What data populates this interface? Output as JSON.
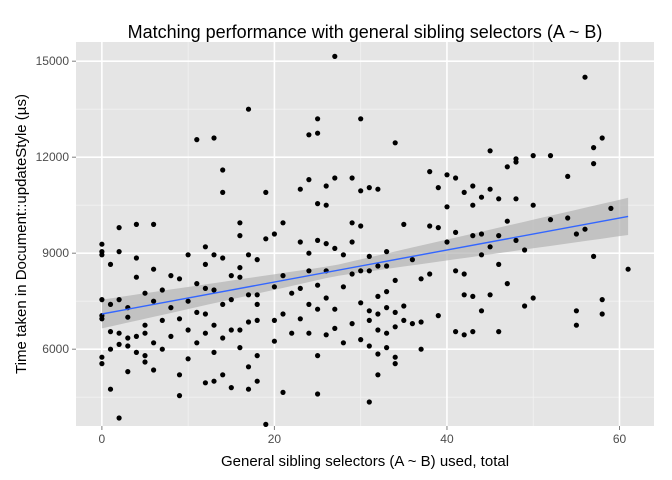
{
  "chart_data": {
    "type": "scatter",
    "title": "Matching performance with general sibling selectors (A ~ B)",
    "xlabel": "General sibling selectors (A ~ B) used, total",
    "ylabel": "Time taken in Document::updateStyle (µs)",
    "xlim": [
      -3,
      64
    ],
    "ylim": [
      3600,
      15600
    ],
    "x_ticks": [
      0,
      20,
      40,
      60
    ],
    "y_ticks": [
      6000,
      9000,
      12000,
      15000
    ],
    "grid": true,
    "panel_background": "#e5e5e5",
    "point_color": "#000000",
    "trend": {
      "method": "linear",
      "color": "#3366ff",
      "band_color": "#b3b3b3",
      "start": [
        0,
        7100
      ],
      "end": [
        61,
        10150
      ],
      "band_halfwidth_start": 450,
      "band_halfwidth_mid": 170,
      "band_halfwidth_end": 580,
      "x_mid": 27
    },
    "points": [
      [
        0,
        9280
      ],
      [
        0,
        9050
      ],
      [
        0,
        8950
      ],
      [
        0,
        7550
      ],
      [
        0,
        7050
      ],
      [
        0,
        6950
      ],
      [
        0,
        5750
      ],
      [
        0,
        5550
      ],
      [
        1,
        8650
      ],
      [
        1,
        7400
      ],
      [
        1,
        6550
      ],
      [
        1,
        6000
      ],
      [
        1,
        4750
      ],
      [
        2,
        9800
      ],
      [
        2,
        9050
      ],
      [
        2,
        7550
      ],
      [
        2,
        6500
      ],
      [
        2,
        6150
      ],
      [
        2,
        3850
      ],
      [
        3,
        7300
      ],
      [
        3,
        7000
      ],
      [
        3,
        6350
      ],
      [
        3,
        6100
      ],
      [
        3,
        5300
      ],
      [
        4,
        9900
      ],
      [
        4,
        8850
      ],
      [
        4,
        8250
      ],
      [
        4,
        6400
      ],
      [
        4,
        5900
      ],
      [
        5,
        7750
      ],
      [
        5,
        6750
      ],
      [
        5,
        6500
      ],
      [
        5,
        5800
      ],
      [
        5,
        5600
      ],
      [
        6,
        9900
      ],
      [
        6,
        8500
      ],
      [
        6,
        7500
      ],
      [
        6,
        6200
      ],
      [
        6,
        5350
      ],
      [
        7,
        7850
      ],
      [
        7,
        6900
      ],
      [
        7,
        6000
      ],
      [
        8,
        8300
      ],
      [
        8,
        7300
      ],
      [
        8,
        6400
      ],
      [
        9,
        8200
      ],
      [
        9,
        6950
      ],
      [
        9,
        5200
      ],
      [
        9,
        4550
      ],
      [
        10,
        8950
      ],
      [
        10,
        7500
      ],
      [
        10,
        6600
      ],
      [
        10,
        5700
      ],
      [
        11,
        12550
      ],
      [
        11,
        8050
      ],
      [
        11,
        7150
      ],
      [
        11,
        6200
      ],
      [
        12,
        9200
      ],
      [
        12,
        8650
      ],
      [
        12,
        7900
      ],
      [
        12,
        7100
      ],
      [
        12,
        6500
      ],
      [
        12,
        4950
      ],
      [
        13,
        12600
      ],
      [
        13,
        8950
      ],
      [
        13,
        7850
      ],
      [
        13,
        6750
      ],
      [
        13,
        5900
      ],
      [
        13,
        5000
      ],
      [
        14,
        11600
      ],
      [
        14,
        10900
      ],
      [
        14,
        8850
      ],
      [
        14,
        7400
      ],
      [
        14,
        6350
      ],
      [
        14,
        5200
      ],
      [
        15,
        8300
      ],
      [
        15,
        7550
      ],
      [
        15,
        6600
      ],
      [
        15,
        4800
      ],
      [
        16,
        9950
      ],
      [
        16,
        9550
      ],
      [
        16,
        8550
      ],
      [
        16,
        8250
      ],
      [
        16,
        6600
      ],
      [
        16,
        6050
      ],
      [
        17,
        13500
      ],
      [
        17,
        8950
      ],
      [
        17,
        7700
      ],
      [
        17,
        6850
      ],
      [
        17,
        5450
      ],
      [
        17,
        4750
      ],
      [
        18,
        8800
      ],
      [
        18,
        7700
      ],
      [
        18,
        7400
      ],
      [
        18,
        6900
      ],
      [
        18,
        5800
      ],
      [
        18,
        5000
      ],
      [
        19,
        10900
      ],
      [
        19,
        9450
      ],
      [
        19,
        3650
      ],
      [
        20,
        9600
      ],
      [
        20,
        7950
      ],
      [
        20,
        6900
      ],
      [
        20,
        6250
      ],
      [
        21,
        9950
      ],
      [
        21,
        8300
      ],
      [
        21,
        7100
      ],
      [
        21,
        4650
      ],
      [
        22,
        7750
      ],
      [
        22,
        6500
      ],
      [
        23,
        11000
      ],
      [
        23,
        9350
      ],
      [
        23,
        7900
      ],
      [
        23,
        6950
      ],
      [
        24,
        12700
      ],
      [
        24,
        11300
      ],
      [
        24,
        9000
      ],
      [
        24,
        8450
      ],
      [
        24,
        7400
      ],
      [
        24,
        6500
      ],
      [
        25,
        13200
      ],
      [
        25,
        12750
      ],
      [
        25,
        10550
      ],
      [
        25,
        9400
      ],
      [
        25,
        8000
      ],
      [
        25,
        7250
      ],
      [
        25,
        5800
      ],
      [
        25,
        4600
      ],
      [
        26,
        11100
      ],
      [
        26,
        10500
      ],
      [
        26,
        9300
      ],
      [
        26,
        8450
      ],
      [
        26,
        7600
      ],
      [
        26,
        6450
      ],
      [
        27,
        15150
      ],
      [
        27,
        11350
      ],
      [
        27,
        9150
      ],
      [
        27,
        7250
      ],
      [
        27,
        6650
      ],
      [
        28,
        8950
      ],
      [
        28,
        7950
      ],
      [
        28,
        6200
      ],
      [
        29,
        11350
      ],
      [
        29,
        9950
      ],
      [
        29,
        9350
      ],
      [
        29,
        8350
      ],
      [
        29,
        6800
      ],
      [
        30,
        13200
      ],
      [
        30,
        10950
      ],
      [
        30,
        9850
      ],
      [
        30,
        8450
      ],
      [
        30,
        7450
      ],
      [
        30,
        6300
      ],
      [
        31,
        11050
      ],
      [
        31,
        8900
      ],
      [
        31,
        8450
      ],
      [
        31,
        7200
      ],
      [
        31,
        6900
      ],
      [
        31,
        6100
      ],
      [
        31,
        4350
      ],
      [
        32,
        11000
      ],
      [
        32,
        8600
      ],
      [
        32,
        7650
      ],
      [
        32,
        7100
      ],
      [
        32,
        6600
      ],
      [
        32,
        5850
      ],
      [
        32,
        5200
      ],
      [
        33,
        9050
      ],
      [
        33,
        8600
      ],
      [
        33,
        7800
      ],
      [
        33,
        7300
      ],
      [
        33,
        6500
      ],
      [
        33,
        6050
      ],
      [
        34,
        12450
      ],
      [
        34,
        8150
      ],
      [
        34,
        7150
      ],
      [
        34,
        6700
      ],
      [
        34,
        5750
      ],
      [
        34,
        5550
      ],
      [
        35,
        9900
      ],
      [
        35,
        7350
      ],
      [
        35,
        6900
      ],
      [
        36,
        8800
      ],
      [
        36,
        6800
      ],
      [
        37,
        8200
      ],
      [
        37,
        6850
      ],
      [
        37,
        6000
      ],
      [
        38,
        11550
      ],
      [
        38,
        9850
      ],
      [
        38,
        8350
      ],
      [
        39,
        9800
      ],
      [
        39,
        11050
      ],
      [
        39,
        7050
      ],
      [
        40,
        11450
      ],
      [
        40,
        10450
      ],
      [
        40,
        9350
      ],
      [
        41,
        11350
      ],
      [
        41,
        9650
      ],
      [
        41,
        8450
      ],
      [
        41,
        6550
      ],
      [
        42,
        10900
      ],
      [
        42,
        8350
      ],
      [
        42,
        6450
      ],
      [
        42,
        7700
      ],
      [
        43,
        11100
      ],
      [
        43,
        10500
      ],
      [
        43,
        9550
      ],
      [
        43,
        7650
      ],
      [
        43,
        6550
      ],
      [
        44,
        10750
      ],
      [
        44,
        9600
      ],
      [
        44,
        8950
      ],
      [
        44,
        7200
      ],
      [
        45,
        12200
      ],
      [
        45,
        11000
      ],
      [
        45,
        9200
      ],
      [
        45,
        7700
      ],
      [
        46,
        10700
      ],
      [
        46,
        9550
      ],
      [
        46,
        8650
      ],
      [
        46,
        6550
      ],
      [
        47,
        11700
      ],
      [
        47,
        10000
      ],
      [
        47,
        8050
      ],
      [
        48,
        11950
      ],
      [
        48,
        11850
      ],
      [
        48,
        10700
      ],
      [
        48,
        9400
      ],
      [
        49,
        9100
      ],
      [
        49,
        7350
      ],
      [
        50,
        12050
      ],
      [
        50,
        10500
      ],
      [
        50,
        7600
      ],
      [
        52,
        12050
      ],
      [
        52,
        10050
      ],
      [
        54,
        11400
      ],
      [
        54,
        10100
      ],
      [
        55,
        9600
      ],
      [
        55,
        7200
      ],
      [
        55,
        6750
      ],
      [
        56,
        14500
      ],
      [
        56,
        9750
      ],
      [
        57,
        12300
      ],
      [
        57,
        11800
      ],
      [
        57,
        8900
      ],
      [
        58,
        12600
      ],
      [
        58,
        7550
      ],
      [
        58,
        7100
      ],
      [
        59,
        10400
      ],
      [
        61,
        8500
      ]
    ]
  }
}
